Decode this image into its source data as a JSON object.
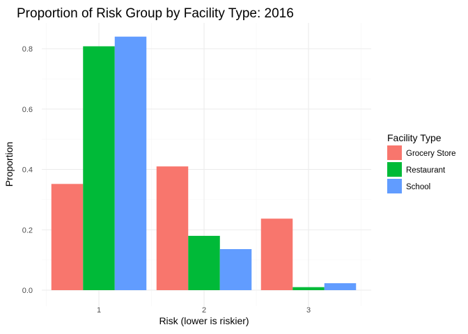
{
  "chart_data": {
    "type": "bar",
    "title": "Proportion of Risk Group by Facility Type: 2016",
    "xlabel": "Risk (lower is riskier)",
    "ylabel": "Proportion",
    "categories": [
      "1",
      "2",
      "3"
    ],
    "ylim": [
      0,
      0.87
    ],
    "yticks": [
      0.0,
      0.2,
      0.4,
      0.6,
      0.8
    ],
    "ytick_labels": [
      "0.0",
      "0.2",
      "0.4",
      "0.6",
      "0.8"
    ],
    "grid": true,
    "legend": {
      "title": "Facility Type",
      "position": "right"
    },
    "series": [
      {
        "name": "Grocery Store",
        "color": "#f8766d",
        "values": [
          0.352,
          0.41,
          0.237
        ]
      },
      {
        "name": "Restaurant",
        "color": "#00ba38",
        "values": [
          0.808,
          0.18,
          0.01
        ]
      },
      {
        "name": "School",
        "color": "#619cff",
        "values": [
          0.84,
          0.136,
          0.023
        ]
      }
    ]
  }
}
